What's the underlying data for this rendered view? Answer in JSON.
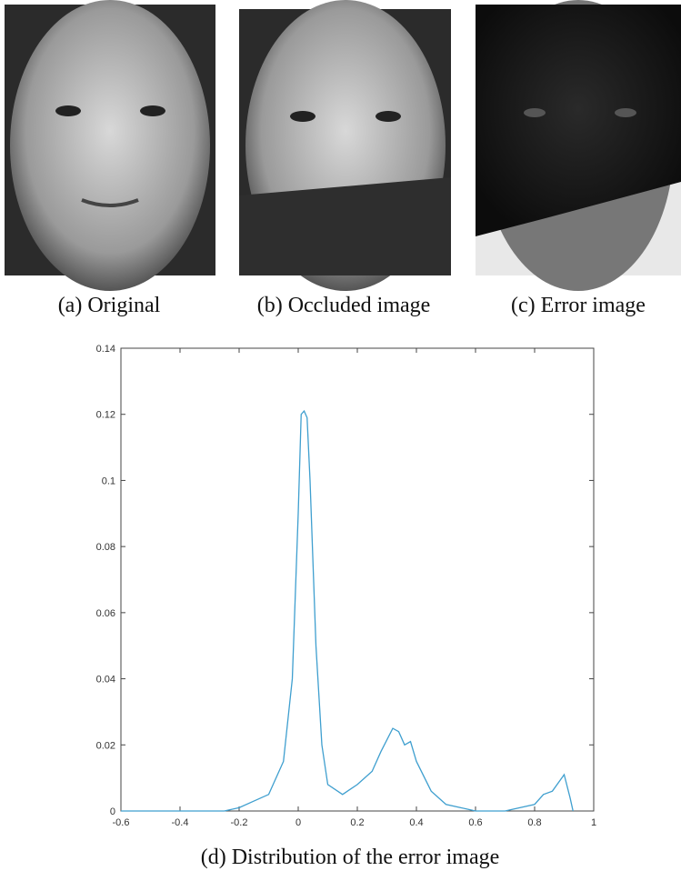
{
  "panels": [
    {
      "caption": "(a) Original"
    },
    {
      "caption": "(b) Occluded image"
    },
    {
      "caption": "(c) Error image"
    }
  ],
  "chart_data": {
    "type": "line",
    "caption": "(d) Distribution of the error image",
    "x": [
      -0.6,
      -0.5,
      -0.4,
      -0.3,
      -0.25,
      -0.2,
      -0.15,
      -0.1,
      -0.05,
      -0.02,
      0,
      0.01,
      0.02,
      0.03,
      0.04,
      0.06,
      0.08,
      0.1,
      0.15,
      0.2,
      0.25,
      0.28,
      0.32,
      0.34,
      0.36,
      0.38,
      0.4,
      0.45,
      0.5,
      0.55,
      0.6,
      0.7,
      0.75,
      0.8,
      0.83,
      0.86,
      0.9,
      0.92,
      0.93
    ],
    "series": [
      {
        "color": "#3f9fcf",
        "values": [
          0,
          0,
          0,
          0,
          0,
          0.001,
          0.003,
          0.005,
          0.015,
          0.04,
          0.09,
          0.12,
          0.121,
          0.119,
          0.1,
          0.05,
          0.02,
          0.008,
          0.005,
          0.008,
          0.012,
          0.018,
          0.025,
          0.024,
          0.02,
          0.021,
          0.015,
          0.006,
          0.002,
          0.001,
          0,
          0,
          0.001,
          0.002,
          0.005,
          0.006,
          0.011,
          0.004,
          0
        ]
      }
    ],
    "xlim": [
      -0.6,
      1
    ],
    "ylim": [
      0,
      0.14
    ],
    "xticks": [
      -0.6,
      -0.4,
      -0.2,
      0,
      0.2,
      0.4,
      0.6,
      0.8,
      1
    ],
    "yticks": [
      0,
      0.02,
      0.04,
      0.06,
      0.08,
      0.1,
      0.12,
      0.14
    ]
  }
}
